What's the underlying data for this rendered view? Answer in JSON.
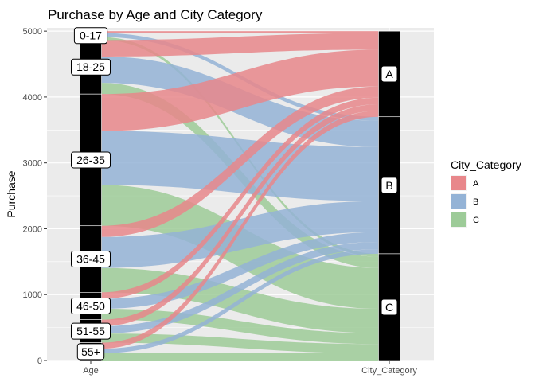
{
  "chart_data": {
    "type": "alluvial",
    "title": "Purchase  by Age and City Category",
    "xlabel": "",
    "ylabel": "Purchase",
    "ylim": [
      0,
      5050
    ],
    "y_ticks": [
      0,
      1000,
      2000,
      3000,
      4000,
      5000
    ],
    "x_axes": [
      "Age",
      "City_Category"
    ],
    "grid": true,
    "legend_position": "right",
    "legend": {
      "title": "City_Category",
      "entries": [
        {
          "label": "A",
          "color": "#E8878B"
        },
        {
          "label": "B",
          "color": "#94B3D6"
        },
        {
          "label": "C",
          "color": "#9DCB98"
        }
      ]
    },
    "age_strata": [
      {
        "label": "0-17",
        "total": 135
      },
      {
        "label": "18-25",
        "total": 820
      },
      {
        "label": "26-35",
        "total": 2000
      },
      {
        "label": "36-45",
        "total": 1010
      },
      {
        "label": "46-50",
        "total": 415
      },
      {
        "label": "51-55",
        "total": 350
      },
      {
        "label": "55+",
        "total": 270
      }
    ],
    "city_strata": [
      {
        "label": "A",
        "total": 1300
      },
      {
        "label": "B",
        "total": 2080
      },
      {
        "label": "C",
        "total": 1620
      }
    ],
    "flows": [
      {
        "age": "0-17",
        "city": "A",
        "value": 30
      },
      {
        "age": "0-17",
        "city": "B",
        "value": 60
      },
      {
        "age": "0-17",
        "city": "C",
        "value": 45
      },
      {
        "age": "18-25",
        "city": "A",
        "value": 250
      },
      {
        "age": "18-25",
        "city": "B",
        "value": 400
      },
      {
        "age": "18-25",
        "city": "C",
        "value": 170
      },
      {
        "age": "26-35",
        "city": "A",
        "value": 560
      },
      {
        "age": "26-35",
        "city": "B",
        "value": 820
      },
      {
        "age": "26-35",
        "city": "C",
        "value": 620
      },
      {
        "age": "36-45",
        "city": "A",
        "value": 170
      },
      {
        "age": "36-45",
        "city": "B",
        "value": 470
      },
      {
        "age": "36-45",
        "city": "C",
        "value": 370
      },
      {
        "age": "46-50",
        "city": "A",
        "value": 100
      },
      {
        "age": "46-50",
        "city": "B",
        "value": 150
      },
      {
        "age": "46-50",
        "city": "C",
        "value": 165
      },
      {
        "age": "51-55",
        "city": "A",
        "value": 100
      },
      {
        "age": "51-55",
        "city": "B",
        "value": 110
      },
      {
        "age": "51-55",
        "city": "C",
        "value": 140
      },
      {
        "age": "55+",
        "city": "A",
        "value": 90
      },
      {
        "age": "55+",
        "city": "B",
        "value": 70
      },
      {
        "age": "55+",
        "city": "C",
        "value": 110
      }
    ]
  }
}
